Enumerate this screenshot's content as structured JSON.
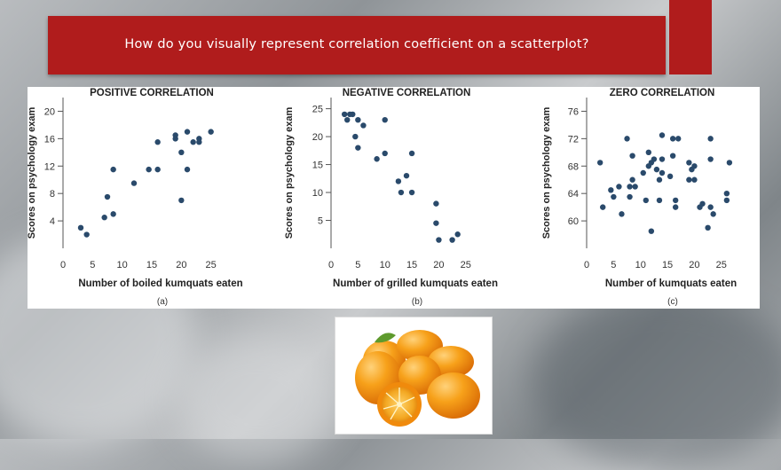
{
  "slide": {
    "title": "How do you visually represent correlation coefficient on a scatterplot?"
  },
  "chart_data": [
    {
      "type": "scatter",
      "title": "POSITIVE CORRELATION",
      "xlabel": "Number of boiled kumquats eaten",
      "ylabel": "Scores on psychology exam",
      "caption": "(a)",
      "xlim": [
        0,
        30
      ],
      "ylim": [
        0,
        22
      ],
      "xticks": [
        0,
        5,
        10,
        15,
        20,
        25
      ],
      "yticks": [
        4,
        8,
        12,
        16,
        20
      ],
      "color": "#2a4a6b",
      "points": [
        [
          3,
          3
        ],
        [
          4,
          2
        ],
        [
          7,
          4.5
        ],
        [
          7.5,
          7.5
        ],
        [
          8.5,
          5
        ],
        [
          8.5,
          11.5
        ],
        [
          12,
          9.5
        ],
        [
          14.5,
          11.5
        ],
        [
          16,
          15.5
        ],
        [
          16,
          11.5
        ],
        [
          19,
          16.5
        ],
        [
          19,
          16
        ],
        [
          20,
          7
        ],
        [
          20,
          14
        ],
        [
          21,
          11.5
        ],
        [
          21,
          17
        ],
        [
          22,
          15.5
        ],
        [
          23,
          16
        ],
        [
          23,
          15.5
        ],
        [
          25,
          17
        ]
      ]
    },
    {
      "type": "scatter",
      "title": "NEGATIVE CORRELATION",
      "xlabel": "Number of grilled kumquats eaten",
      "ylabel": "Scores on psychology exam",
      "caption": "(b)",
      "xlim": [
        0,
        28
      ],
      "ylim": [
        0,
        27
      ],
      "xticks": [
        0,
        5,
        10,
        15,
        20,
        25
      ],
      "yticks": [
        5,
        10,
        15,
        20,
        25
      ],
      "color": "#2a4a6b",
      "points": [
        [
          2.5,
          24
        ],
        [
          3,
          23
        ],
        [
          3.5,
          24
        ],
        [
          4,
          24
        ],
        [
          4.5,
          20
        ],
        [
          5,
          23
        ],
        [
          5,
          18
        ],
        [
          6,
          22
        ],
        [
          8.5,
          16
        ],
        [
          10,
          23
        ],
        [
          10,
          17
        ],
        [
          12.5,
          12
        ],
        [
          13,
          10
        ],
        [
          14,
          13
        ],
        [
          15,
          17
        ],
        [
          15,
          10
        ],
        [
          19.5,
          8
        ],
        [
          19.5,
          4.5
        ],
        [
          20,
          1.5
        ],
        [
          22.5,
          1.5
        ],
        [
          23.5,
          2.5
        ]
      ]
    },
    {
      "type": "scatter",
      "title": "ZERO CORRELATION",
      "xlabel": "Number of kumquats eaten",
      "ylabel": "Scores on psychology exam",
      "caption": "(c)",
      "xlim": [
        0,
        28
      ],
      "ylim": [
        56,
        78
      ],
      "xticks": [
        0,
        5,
        10,
        15,
        20,
        25
      ],
      "yticks": [
        60,
        64,
        68,
        72,
        76
      ],
      "color": "#2a4a6b",
      "points": [
        [
          2.5,
          68.5
        ],
        [
          3,
          62
        ],
        [
          4.5,
          64.5
        ],
        [
          5,
          63.5
        ],
        [
          6,
          65
        ],
        [
          6.5,
          61
        ],
        [
          7.5,
          72
        ],
        [
          8,
          65
        ],
        [
          8,
          63.5
        ],
        [
          8.5,
          69.5
        ],
        [
          8.5,
          66
        ],
        [
          9,
          65
        ],
        [
          10.5,
          67
        ],
        [
          11,
          63
        ],
        [
          11.5,
          70
        ],
        [
          11.5,
          68
        ],
        [
          12,
          68.5
        ],
        [
          12,
          58.5
        ],
        [
          12.5,
          69
        ],
        [
          13,
          67.5
        ],
        [
          13.5,
          66
        ],
        [
          13.5,
          63
        ],
        [
          14,
          72.5
        ],
        [
          14,
          67
        ],
        [
          14,
          69
        ],
        [
          15.5,
          66.5
        ],
        [
          16,
          69.5
        ],
        [
          16,
          72
        ],
        [
          16.5,
          62
        ],
        [
          16.5,
          63
        ],
        [
          17,
          72
        ],
        [
          19,
          66
        ],
        [
          19,
          68.5
        ],
        [
          19.5,
          67.5
        ],
        [
          20,
          68
        ],
        [
          20,
          66
        ],
        [
          21,
          62
        ],
        [
          21.5,
          62.5
        ],
        [
          22.5,
          59
        ],
        [
          23,
          72
        ],
        [
          23,
          69
        ],
        [
          23,
          62
        ],
        [
          23.5,
          61
        ],
        [
          26,
          64
        ],
        [
          26,
          63
        ],
        [
          26.5,
          68.5
        ]
      ]
    }
  ]
}
